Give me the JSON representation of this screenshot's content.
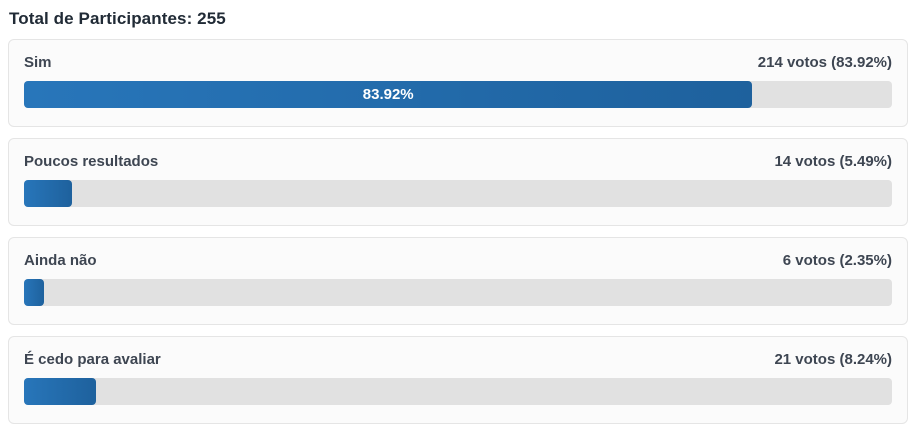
{
  "page": {
    "title": "Total de Participantes: 255"
  },
  "colors": {
    "bar_fill_start": "#2876ba",
    "bar_fill_end": "#1e619d",
    "track": "#e1e1e1",
    "card_background": "#fbfbfb",
    "card_border": "#e5e5e5",
    "text": "#3e4652",
    "title_text": "#212b36",
    "bar_label_text": "#ffffff"
  },
  "options": [
    {
      "label": "Sim",
      "votes_text": "214 votos (83.92%)",
      "percent": 83.92,
      "bar_label": "83.92%"
    },
    {
      "label": "Poucos resultados",
      "votes_text": "14 votos (5.49%)",
      "percent": 5.49,
      "bar_label": ""
    },
    {
      "label": "Ainda não",
      "votes_text": "6 votos (2.35%)",
      "percent": 2.35,
      "bar_label": ""
    },
    {
      "label": "É cedo para avaliar",
      "votes_text": "21 votos (8.24%)",
      "percent": 8.24,
      "bar_label": ""
    }
  ],
  "chart_data": {
    "type": "bar",
    "orientation": "horizontal",
    "title": "Total de Participantes: 255",
    "total_participants": 255,
    "categories": [
      "Sim",
      "Poucos resultados",
      "Ainda não",
      "É cedo para avaliar"
    ],
    "series": [
      {
        "name": "votos",
        "values": [
          214,
          14,
          6,
          21
        ]
      },
      {
        "name": "percent",
        "values": [
          83.92,
          5.49,
          2.35,
          8.24
        ]
      }
    ],
    "value_labels": [
      "214 votos (83.92%)",
      "14 votos (5.49%)",
      "6 votos (2.35%)",
      "21 votos (8.24%)"
    ],
    "xlim": [
      0,
      100
    ],
    "grid": false,
    "legend": "none"
  }
}
